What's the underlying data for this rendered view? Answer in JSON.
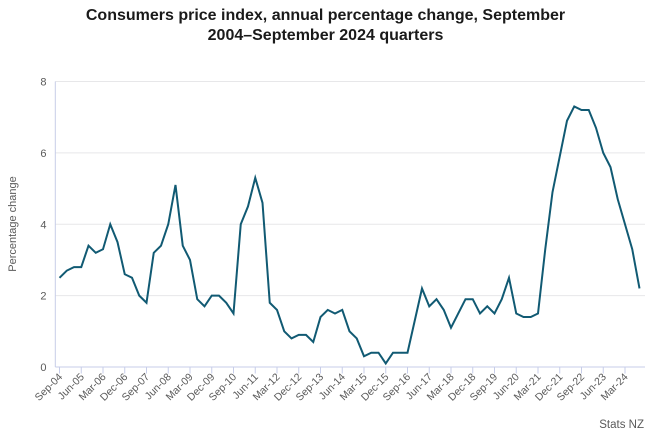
{
  "colors": {
    "line": "#115A73",
    "grid": "#e7e7e9",
    "axis": "#c7cde8",
    "text": "#5a5a5a",
    "title": "#1a1a1a"
  },
  "source": "Stats NZ",
  "chart_data": {
    "type": "line",
    "title": "Consumers price index, annual percentage change, September 2004–September 2024 quarters",
    "title_lines": [
      "Consumers price index, annual percentage change, September",
      "2004–September 2024 quarters"
    ],
    "xlabel": "",
    "ylabel": "Percentage change",
    "ylim": [
      0,
      8
    ],
    "yticks": [
      0,
      2,
      4,
      6,
      8
    ],
    "grid": true,
    "legend": false,
    "tick_every": 3,
    "categories": [
      "Sep-04",
      "Dec-04",
      "Mar-05",
      "Jun-05",
      "Sep-05",
      "Dec-05",
      "Mar-06",
      "Jun-06",
      "Sep-06",
      "Dec-06",
      "Mar-07",
      "Jun-07",
      "Sep-07",
      "Dec-07",
      "Mar-08",
      "Jun-08",
      "Sep-08",
      "Dec-08",
      "Mar-09",
      "Jun-09",
      "Sep-09",
      "Dec-09",
      "Mar-10",
      "Jun-10",
      "Sep-10",
      "Dec-10",
      "Mar-11",
      "Jun-11",
      "Sep-11",
      "Dec-11",
      "Mar-12",
      "Jun-12",
      "Sep-12",
      "Dec-12",
      "Mar-13",
      "Jun-13",
      "Sep-13",
      "Dec-13",
      "Mar-14",
      "Jun-14",
      "Sep-14",
      "Dec-14",
      "Mar-15",
      "Jun-15",
      "Sep-15",
      "Dec-15",
      "Mar-16",
      "Jun-16",
      "Sep-16",
      "Dec-16",
      "Mar-17",
      "Jun-17",
      "Sep-17",
      "Dec-17",
      "Mar-18",
      "Jun-18",
      "Sep-18",
      "Dec-18",
      "Mar-19",
      "Jun-19",
      "Sep-19",
      "Dec-19",
      "Mar-20",
      "Jun-20",
      "Sep-20",
      "Dec-20",
      "Mar-21",
      "Jun-21",
      "Sep-21",
      "Dec-21",
      "Mar-22",
      "Jun-22",
      "Sep-22",
      "Dec-22",
      "Mar-23",
      "Jun-23",
      "Sep-23",
      "Dec-23",
      "Mar-24",
      "Jun-24",
      "Sep-24"
    ],
    "series": [
      {
        "name": "CPI annual percentage change",
        "values": [
          2.5,
          2.7,
          2.8,
          2.8,
          3.4,
          3.2,
          3.3,
          4.0,
          3.5,
          2.6,
          2.5,
          2.0,
          1.8,
          3.2,
          3.4,
          4.0,
          5.1,
          3.4,
          3.0,
          1.9,
          1.7,
          2.0,
          2.0,
          1.8,
          1.5,
          4.0,
          4.5,
          5.3,
          4.6,
          1.8,
          1.6,
          1.0,
          0.8,
          0.9,
          0.9,
          0.7,
          1.4,
          1.6,
          1.5,
          1.6,
          1.0,
          0.8,
          0.3,
          0.4,
          0.4,
          0.1,
          0.4,
          0.4,
          0.4,
          1.3,
          2.2,
          1.7,
          1.9,
          1.6,
          1.1,
          1.5,
          1.9,
          1.9,
          1.5,
          1.7,
          1.5,
          1.9,
          2.5,
          1.5,
          1.4,
          1.4,
          1.5,
          3.3,
          4.9,
          5.9,
          6.9,
          7.3,
          7.2,
          7.2,
          6.7,
          6.0,
          5.6,
          4.7,
          4.0,
          3.3,
          2.2
        ]
      }
    ]
  }
}
